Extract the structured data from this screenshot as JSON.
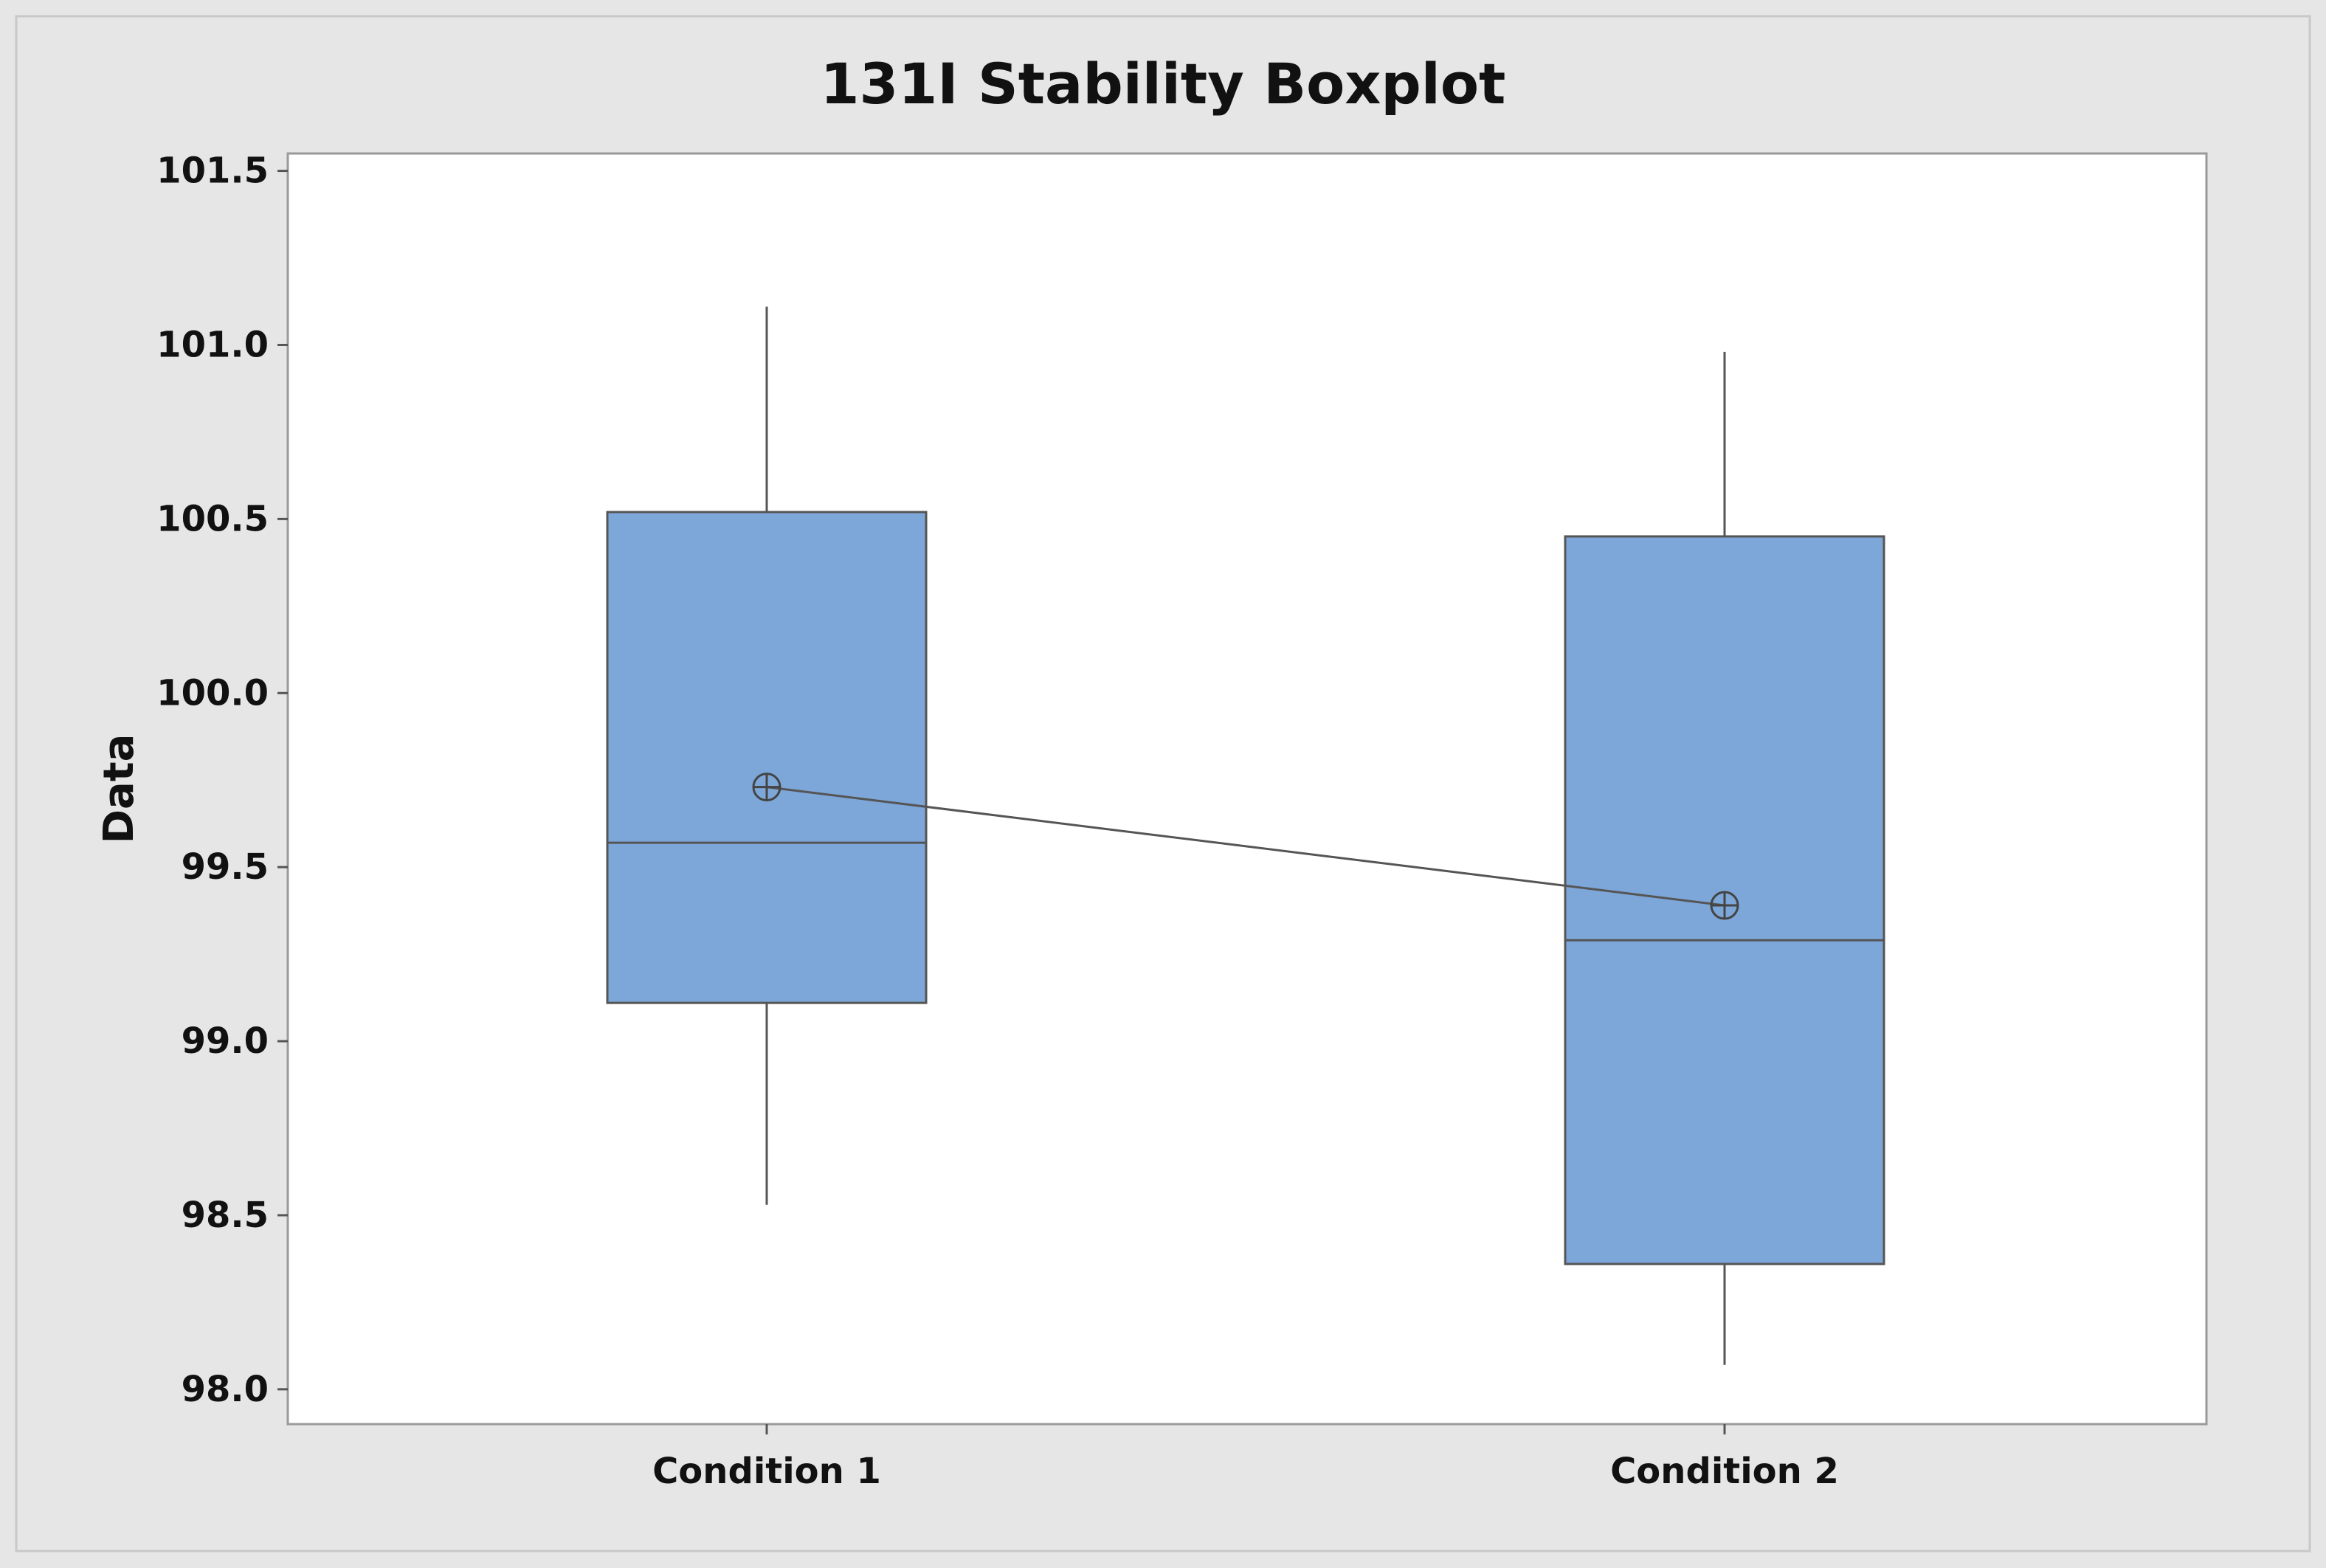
{
  "chart_data": {
    "type": "boxplot",
    "title": "131I Stability Boxplot",
    "xlabel": "",
    "ylabel": "Data",
    "ylim": [
      97.9,
      101.5
    ],
    "yticks": [
      "98.0",
      "98.5",
      "99.0",
      "99.5",
      "100.0",
      "100.5",
      "101.0",
      "101.5"
    ],
    "categories": [
      "Condition 1",
      "Condition 2"
    ],
    "boxes": [
      {
        "category": "Condition 1",
        "whisker_low": 98.53,
        "q1": 99.11,
        "median": 99.57,
        "q3": 100.52,
        "whisker_high": 101.11,
        "mean": 99.73
      },
      {
        "category": "Condition 2",
        "whisker_low": 98.07,
        "q1": 98.36,
        "median": 99.29,
        "q3": 100.45,
        "whisker_high": 100.98,
        "mean": 99.39
      }
    ],
    "mean_connect_line": true,
    "grid": false,
    "legend": "none",
    "colors": {
      "box_fill": "#7DA7D9",
      "box_edge": "#555555",
      "plot_bg": "#FFFFFF",
      "figure_bg": "#E6E6E6"
    }
  }
}
